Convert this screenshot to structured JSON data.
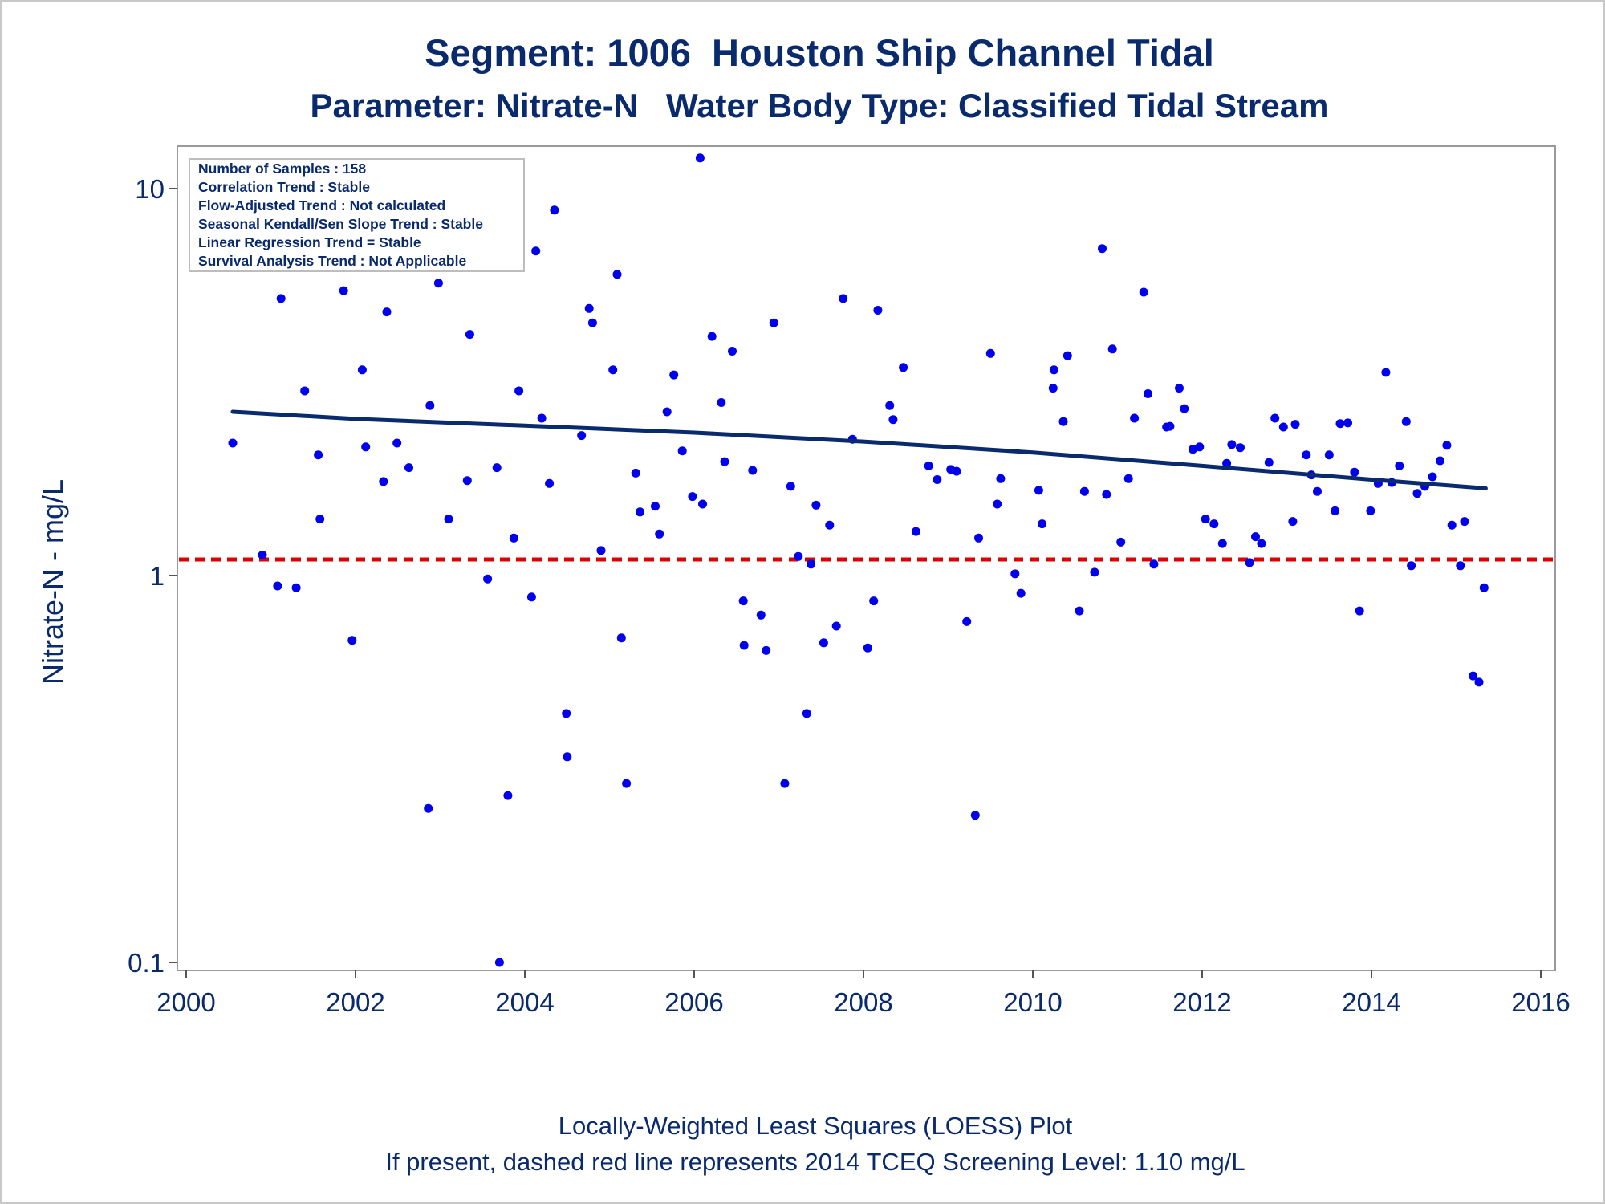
{
  "chart_data": {
    "type": "scatter",
    "title": "Segment: 1006  Houston Ship Channel Tidal",
    "subtitle": "Parameter: Nitrate-N   Water Body Type: Classified Tidal Stream",
    "xlabel": "",
    "ylabel": "Nitrate-N - mg/L",
    "footer": [
      "Locally-Weighted Least Squares (LOESS) Plot",
      "If present, dashed red line represents 2014 TCEQ Screening Level: 1.10 mg/L"
    ],
    "xlim": [
      1999.8,
      2016.2
    ],
    "ylim": [
      0.1,
      12.3
    ],
    "y_scale": "log",
    "x_ticks": [
      2000,
      2002,
      2004,
      2006,
      2008,
      2010,
      2012,
      2014,
      2016
    ],
    "x_tick_labels": [
      "2000",
      "2002",
      "2004",
      "2006",
      "2008",
      "2010",
      "2012",
      "2014",
      "2016"
    ],
    "y_ticks": [
      0.1,
      1,
      10
    ],
    "y_tick_labels": [
      "0.1",
      "1",
      "10"
    ],
    "grid": false,
    "legend": "none",
    "stats_box": {
      "placement": "top-left",
      "lines": [
        "Number of Samples : 158",
        "Correlation Trend : Stable",
        "Flow-Adjusted Trend : Not calculated",
        "Seasonal Kendall/Sen Slope Trend : Stable",
        "Linear Regression Trend = Stable",
        "Survival Analysis Trend : Not Applicable"
      ]
    },
    "screening_level": {
      "value": 1.1,
      "color": "#dd0000",
      "style": "dashed"
    },
    "loess": {
      "color": "#0a2a6e",
      "x": [
        2000.55,
        2002,
        2004,
        2006,
        2008,
        2010,
        2012,
        2014,
        2015.35
      ],
      "y": [
        2.65,
        2.54,
        2.44,
        2.34,
        2.22,
        2.08,
        1.92,
        1.77,
        1.68
      ]
    },
    "point_color": "#0000ee",
    "points": [
      [
        2000.55,
        2.2
      ],
      [
        2000.9,
        1.13
      ],
      [
        2001.08,
        0.94
      ],
      [
        2001.12,
        5.2
      ],
      [
        2001.3,
        0.93
      ],
      [
        2001.4,
        3.0
      ],
      [
        2001.56,
        2.05
      ],
      [
        2001.58,
        1.4
      ],
      [
        2001.86,
        5.45
      ],
      [
        2001.96,
        0.68
      ],
      [
        2002.08,
        3.4
      ],
      [
        2002.12,
        2.15
      ],
      [
        2002.33,
        1.75
      ],
      [
        2002.37,
        4.8
      ],
      [
        2002.49,
        2.2
      ],
      [
        2002.63,
        1.9
      ],
      [
        2002.86,
        0.25
      ],
      [
        2002.88,
        2.75
      ],
      [
        2002.98,
        5.7
      ],
      [
        2003.1,
        1.4
      ],
      [
        2003.32,
        1.76
      ],
      [
        2003.35,
        4.2
      ],
      [
        2003.56,
        0.98
      ],
      [
        2003.67,
        1.9
      ],
      [
        2003.7,
        0.1
      ],
      [
        2003.8,
        0.27
      ],
      [
        2003.87,
        1.25
      ],
      [
        2003.93,
        3.0
      ],
      [
        2004.08,
        0.88
      ],
      [
        2004.13,
        6.9
      ],
      [
        2004.2,
        2.55
      ],
      [
        2004.29,
        1.73
      ],
      [
        2004.35,
        8.8
      ],
      [
        2004.49,
        0.44
      ],
      [
        2004.5,
        0.34
      ],
      [
        2004.67,
        2.3
      ],
      [
        2004.76,
        4.9
      ],
      [
        2004.8,
        4.5
      ],
      [
        2004.9,
        1.16
      ],
      [
        2005.04,
        3.4
      ],
      [
        2005.09,
        6.0
      ],
      [
        2005.14,
        0.69
      ],
      [
        2005.2,
        0.29
      ],
      [
        2005.31,
        1.84
      ],
      [
        2005.36,
        1.46
      ],
      [
        2005.54,
        1.51
      ],
      [
        2005.59,
        1.28
      ],
      [
        2005.68,
        2.65
      ],
      [
        2005.76,
        3.3
      ],
      [
        2005.86,
        2.1
      ],
      [
        2005.98,
        1.6
      ],
      [
        2006.07,
        12.0
      ],
      [
        2006.1,
        1.53
      ],
      [
        2006.21,
        4.15
      ],
      [
        2006.32,
        2.8
      ],
      [
        2006.36,
        1.97
      ],
      [
        2006.45,
        3.8
      ],
      [
        2006.58,
        0.86
      ],
      [
        2006.59,
        0.66
      ],
      [
        2006.69,
        1.87
      ],
      [
        2006.79,
        0.79
      ],
      [
        2006.85,
        0.64
      ],
      [
        2006.94,
        4.5
      ],
      [
        2007.07,
        0.29
      ],
      [
        2007.14,
        1.7
      ],
      [
        2007.23,
        1.12
      ],
      [
        2007.33,
        0.44
      ],
      [
        2007.38,
        1.07
      ],
      [
        2007.44,
        1.52
      ],
      [
        2007.53,
        0.67
      ],
      [
        2007.6,
        1.35
      ],
      [
        2007.68,
        0.74
      ],
      [
        2007.76,
        5.2
      ],
      [
        2007.87,
        2.25
      ],
      [
        2008.05,
        0.65
      ],
      [
        2008.12,
        0.86
      ],
      [
        2008.17,
        4.85
      ],
      [
        2008.31,
        2.75
      ],
      [
        2008.35,
        2.53
      ],
      [
        2008.47,
        3.45
      ],
      [
        2008.62,
        1.3
      ],
      [
        2008.77,
        1.92
      ],
      [
        2008.87,
        1.77
      ],
      [
        2009.03,
        1.88
      ],
      [
        2009.1,
        1.86
      ],
      [
        2009.22,
        0.76
      ],
      [
        2009.32,
        0.24
      ],
      [
        2009.36,
        1.25
      ],
      [
        2009.5,
        3.75
      ],
      [
        2009.58,
        1.53
      ],
      [
        2009.62,
        1.78
      ],
      [
        2009.79,
        1.01
      ],
      [
        2009.86,
        0.9
      ],
      [
        2010.07,
        1.66
      ],
      [
        2010.11,
        1.36
      ],
      [
        2010.24,
        3.05
      ],
      [
        2010.25,
        3.4
      ],
      [
        2010.36,
        2.5
      ],
      [
        2010.41,
        3.7
      ],
      [
        2010.55,
        0.81
      ],
      [
        2010.61,
        1.65
      ],
      [
        2010.73,
        1.02
      ],
      [
        2010.82,
        7.0
      ],
      [
        2010.87,
        1.62
      ],
      [
        2010.94,
        3.85
      ],
      [
        2011.04,
        1.22
      ],
      [
        2011.13,
        1.78
      ],
      [
        2011.2,
        2.55
      ],
      [
        2011.31,
        5.4
      ],
      [
        2011.36,
        2.95
      ],
      [
        2011.43,
        1.07
      ],
      [
        2011.58,
        2.42
      ],
      [
        2011.62,
        2.43
      ],
      [
        2011.73,
        3.05
      ],
      [
        2011.79,
        2.7
      ],
      [
        2011.89,
        2.12
      ],
      [
        2011.97,
        2.15
      ],
      [
        2012.04,
        1.4
      ],
      [
        2012.14,
        1.36
      ],
      [
        2012.24,
        1.21
      ],
      [
        2012.29,
        1.95
      ],
      [
        2012.35,
        2.18
      ],
      [
        2012.45,
        2.14
      ],
      [
        2012.56,
        1.08
      ],
      [
        2012.63,
        1.26
      ],
      [
        2012.7,
        1.21
      ],
      [
        2012.79,
        1.96
      ],
      [
        2012.86,
        2.55
      ],
      [
        2012.96,
        2.42
      ],
      [
        2013.07,
        1.38
      ],
      [
        2013.1,
        2.46
      ],
      [
        2013.23,
        2.05
      ],
      [
        2013.29,
        1.82
      ],
      [
        2013.36,
        1.65
      ],
      [
        2013.5,
        2.05
      ],
      [
        2013.57,
        1.47
      ],
      [
        2013.63,
        2.47
      ],
      [
        2013.72,
        2.48
      ],
      [
        2013.8,
        1.85
      ],
      [
        2013.86,
        0.81
      ],
      [
        2013.99,
        1.47
      ],
      [
        2014.08,
        1.73
      ],
      [
        2014.17,
        3.35
      ],
      [
        2014.24,
        1.74
      ],
      [
        2014.33,
        1.92
      ],
      [
        2014.41,
        2.5
      ],
      [
        2014.47,
        1.06
      ],
      [
        2014.54,
        1.63
      ],
      [
        2014.63,
        1.7
      ],
      [
        2014.72,
        1.8
      ],
      [
        2014.81,
        1.98
      ],
      [
        2014.89,
        2.17
      ],
      [
        2014.95,
        1.35
      ],
      [
        2015.05,
        1.06
      ],
      [
        2015.1,
        1.38
      ],
      [
        2015.2,
        0.55
      ],
      [
        2015.27,
        0.53
      ],
      [
        2015.33,
        0.93
      ]
    ]
  }
}
